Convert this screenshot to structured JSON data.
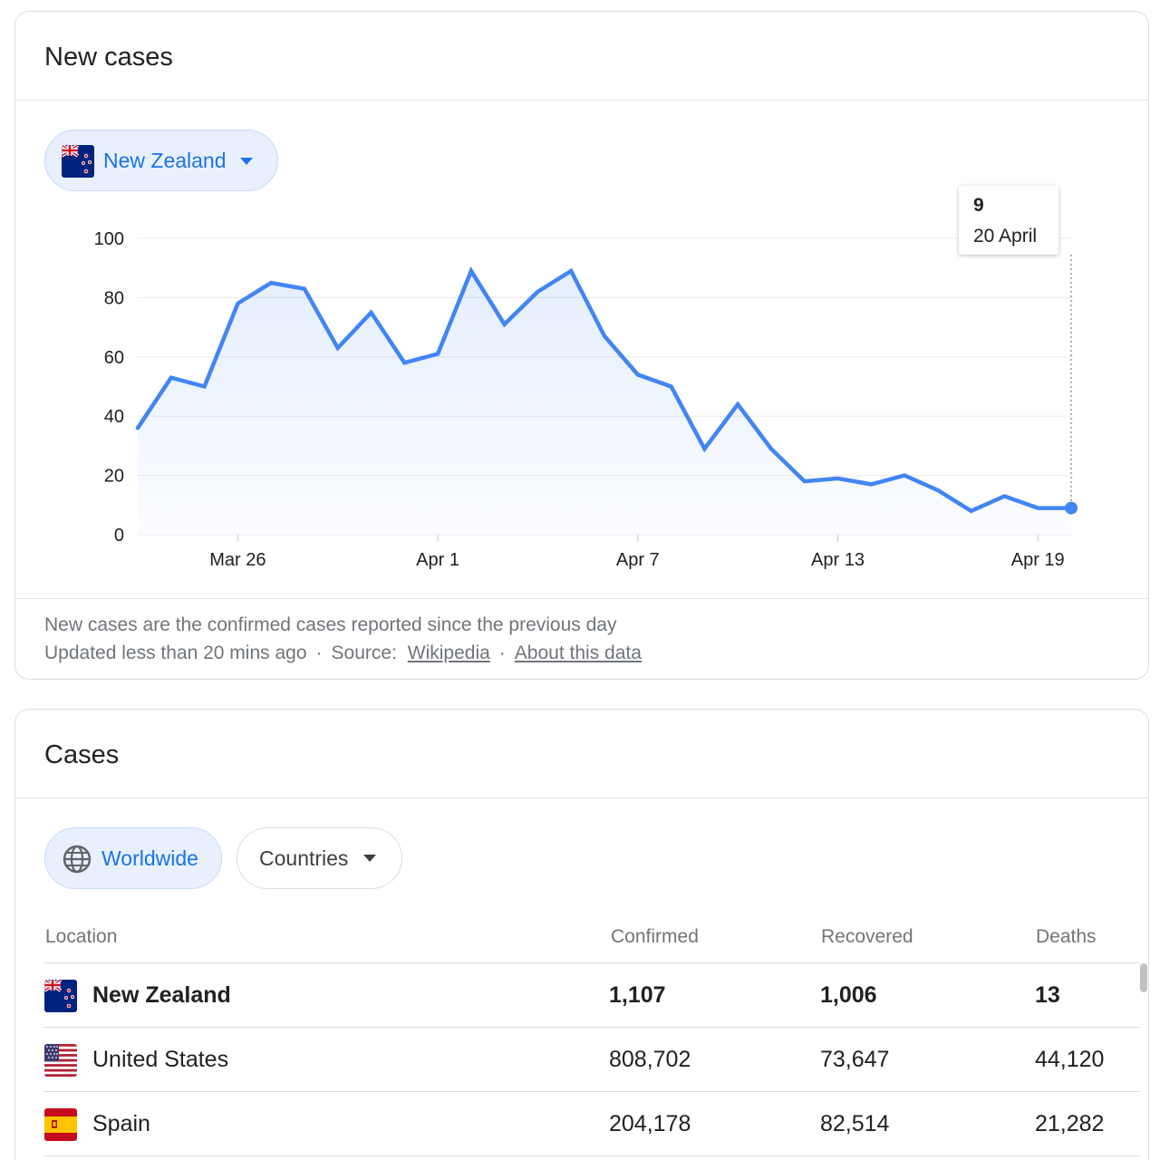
{
  "new_cases_card": {
    "title": "New cases",
    "country_chip": {
      "label": "New Zealand",
      "flag_icon": "new-zealand-flag-icon"
    },
    "tooltip": {
      "value": "9",
      "date": "20 April"
    },
    "footnote_line1": "New cases are the confirmed cases reported since the previous day",
    "footnote_updated": "Updated less than 20 mins ago",
    "footnote_sep": "·",
    "footnote_source_label": "Source:",
    "footnote_source_link": "Wikipedia",
    "footnote_about_link": "About this data"
  },
  "chart_data": {
    "type": "area",
    "title": "",
    "xlabel": "",
    "ylabel": "",
    "x": [
      "2020-03-23",
      "2020-03-24",
      "2020-03-25",
      "2020-03-26",
      "2020-03-27",
      "2020-03-28",
      "2020-03-29",
      "2020-03-30",
      "2020-03-31",
      "2020-04-01",
      "2020-04-02",
      "2020-04-03",
      "2020-04-04",
      "2020-04-05",
      "2020-04-06",
      "2020-04-07",
      "2020-04-08",
      "2020-04-09",
      "2020-04-10",
      "2020-04-11",
      "2020-04-12",
      "2020-04-13",
      "2020-04-14",
      "2020-04-15",
      "2020-04-16",
      "2020-04-17",
      "2020-04-18",
      "2020-04-19",
      "2020-04-20"
    ],
    "values": [
      36,
      53,
      50,
      78,
      85,
      83,
      63,
      75,
      58,
      61,
      89,
      71,
      82,
      89,
      67,
      54,
      50,
      29,
      44,
      29,
      18,
      19,
      17,
      20,
      15,
      8,
      13,
      9,
      9
    ],
    "ylim": [
      0,
      100
    ],
    "y_ticks": [
      "0",
      "20",
      "40",
      "60",
      "80",
      "100"
    ],
    "x_ticks": [
      {
        "label": "Mar 26",
        "date": "2020-03-26"
      },
      {
        "label": "Apr 1",
        "date": "2020-04-01"
      },
      {
        "label": "Apr 7",
        "date": "2020-04-07"
      },
      {
        "label": "Apr 13",
        "date": "2020-04-13"
      },
      {
        "label": "Apr 19",
        "date": "2020-04-19"
      }
    ],
    "grid": true,
    "line_color": "#4285f4",
    "highlight": {
      "date": "2020-04-20",
      "value": 9
    }
  },
  "cases_card": {
    "title": "Cases",
    "worldwide_chip": {
      "label": "Worldwide",
      "icon": "globe-icon"
    },
    "countries_chip": {
      "label": "Countries"
    },
    "table": {
      "headers": {
        "location": "Location",
        "confirmed": "Confirmed",
        "recovered": "Recovered",
        "deaths": "Deaths"
      },
      "rows": [
        {
          "location": "New Zealand",
          "confirmed": "1,107",
          "recovered": "1,006",
          "deaths": "13",
          "flag_icon": "new-zealand-flag-icon",
          "highlighted": true
        },
        {
          "location": "United States",
          "confirmed": "808,702",
          "recovered": "73,647",
          "deaths": "44,120",
          "flag_icon": "united-states-flag-icon"
        },
        {
          "location": "Spain",
          "confirmed": "204,178",
          "recovered": "82,514",
          "deaths": "21,282",
          "flag_icon": "spain-flag-icon"
        }
      ]
    }
  },
  "colors": {
    "accent": "#1a73e8",
    "chip_bg": "#e8f0fe",
    "muted_text": "#70757a"
  }
}
